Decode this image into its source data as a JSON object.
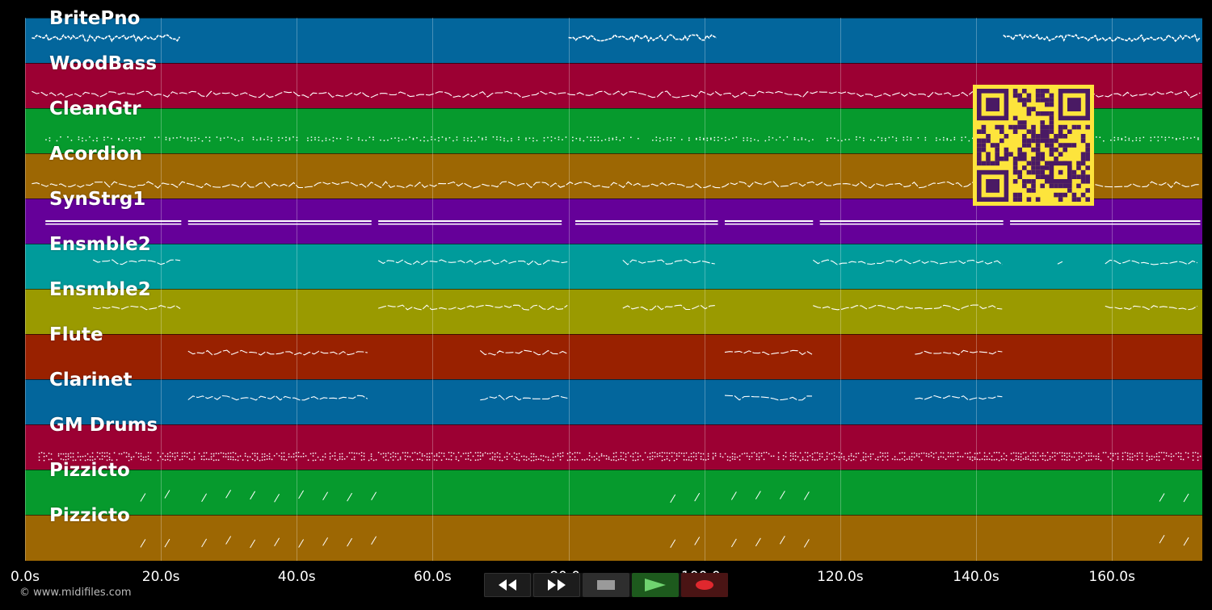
{
  "app": {
    "copyright": "© www.midifiles.com"
  },
  "colors": {
    "background": "#000000",
    "note": "#ffffff",
    "qr_background": "#fde43c",
    "qr_module": "#4a1a64"
  },
  "timeline": {
    "duration_s": 173.3,
    "tick_labels": [
      "0.0s",
      "20.0s",
      "40.0s",
      "60.0s",
      "80.0s",
      "100.0s",
      "120.0s",
      "140.0s",
      "160.0s"
    ],
    "tick_values": [
      0,
      20,
      40,
      60,
      80,
      100,
      120,
      140,
      160
    ]
  },
  "tracks": [
    {
      "name": "BritePno",
      "color": "#03669c",
      "style": "dense",
      "segments": [
        [
          1,
          23
        ],
        [
          80,
          102
        ],
        [
          144,
          173
        ]
      ]
    },
    {
      "name": "WoodBass",
      "color": "#9c0033",
      "style": "wavy",
      "segments": [
        [
          1,
          173
        ]
      ]
    },
    {
      "name": "CleanGtr",
      "color": "#069a2d",
      "style": "dots",
      "segments": [
        [
          3,
          80
        ],
        [
          80,
          173
        ]
      ]
    },
    {
      "name": "Acordion",
      "color": "#9d6703",
      "style": "wavy",
      "segments": [
        [
          1,
          173
        ]
      ]
    },
    {
      "name": "SynStrg1",
      "color": "#650099",
      "style": "bars",
      "segments": [
        [
          3,
          23
        ],
        [
          24,
          51
        ],
        [
          52,
          79
        ],
        [
          81,
          102
        ],
        [
          103,
          116
        ],
        [
          117,
          144
        ],
        [
          145,
          173
        ]
      ]
    },
    {
      "name": "Ensmble2",
      "color": "#009b9b",
      "style": "phrase",
      "segments": [
        [
          10,
          23
        ],
        [
          52,
          80
        ],
        [
          88,
          102
        ],
        [
          116,
          144
        ],
        [
          152,
          153
        ],
        [
          159,
          173
        ]
      ]
    },
    {
      "name": "Ensmble2",
      "color": "#9a9a00",
      "style": "phrase",
      "segments": [
        [
          10,
          23
        ],
        [
          52,
          80
        ],
        [
          88,
          102
        ],
        [
          116,
          144
        ],
        [
          159,
          173
        ]
      ]
    },
    {
      "name": "Flute",
      "color": "#992100",
      "style": "phrase",
      "segments": [
        [
          24,
          51
        ],
        [
          67,
          80
        ],
        [
          103,
          116
        ],
        [
          131,
          144
        ]
      ]
    },
    {
      "name": "Clarinet",
      "color": "#03669c",
      "style": "phrase",
      "segments": [
        [
          24,
          51
        ],
        [
          67,
          80
        ],
        [
          103,
          116
        ],
        [
          131,
          144
        ]
      ]
    },
    {
      "name": "GM Drums",
      "color": "#9c0033",
      "style": "drums",
      "segments": [
        [
          2,
          173
        ]
      ]
    },
    {
      "name": "Pizzicto",
      "color": "#069a2d",
      "style": "ticks",
      "segments": [
        [
          17,
          23
        ],
        [
          26,
          52
        ],
        [
          95,
          102
        ],
        [
          104,
          117
        ],
        [
          167,
          173
        ]
      ]
    },
    {
      "name": "Pizzicto",
      "color": "#9d6703",
      "style": "ticks",
      "segments": [
        [
          17,
          23
        ],
        [
          26,
          52
        ],
        [
          95,
          102
        ],
        [
          104,
          117
        ],
        [
          167,
          173
        ]
      ]
    }
  ],
  "transport": {
    "rewind": "rewind-icon",
    "fast_forward": "fast-forward-icon",
    "stop": "stop-icon",
    "play": "play-icon",
    "record": "record-icon"
  }
}
